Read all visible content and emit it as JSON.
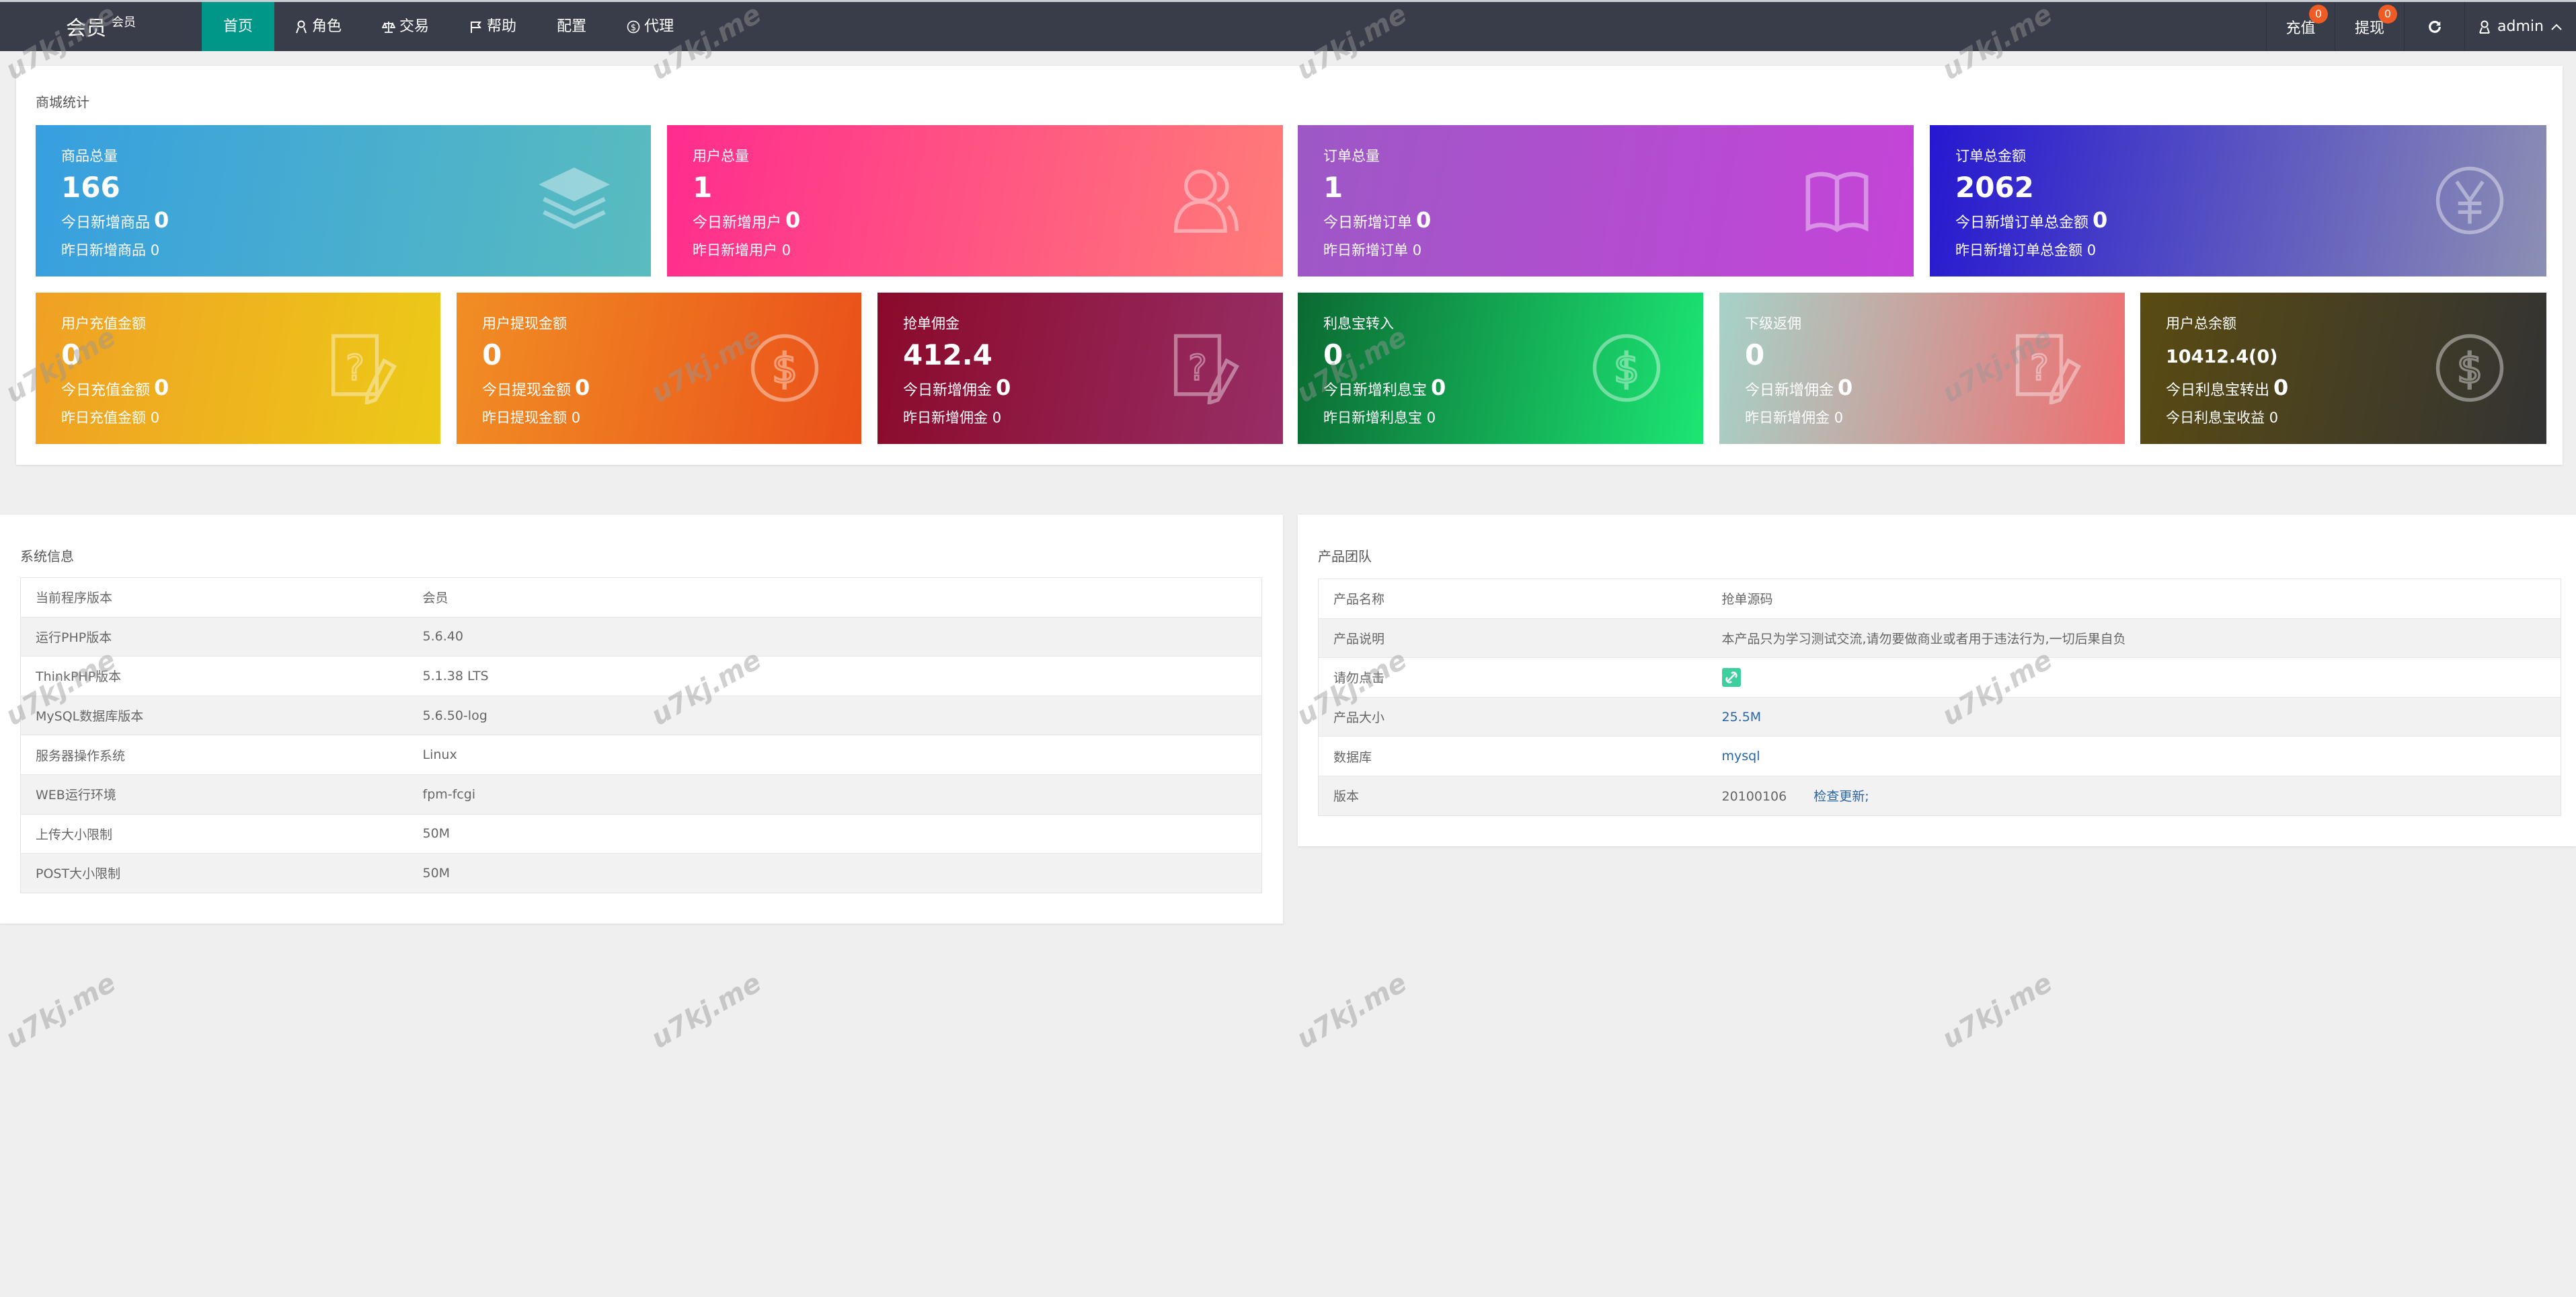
{
  "nav": {
    "logo": "会员",
    "logo_sup": "会员",
    "menu": [
      {
        "label": "首页",
        "icon": "",
        "active": true
      },
      {
        "label": "角色",
        "icon": "user-icon"
      },
      {
        "label": "交易",
        "icon": "scale-icon"
      },
      {
        "label": "帮助",
        "icon": "flag-icon"
      },
      {
        "label": "配置",
        "icon": ""
      },
      {
        "label": "代理",
        "icon": "dollar-circle-icon"
      }
    ],
    "recharge": {
      "label": "充值",
      "badge": "0"
    },
    "withdraw": {
      "label": "提现",
      "badge": "0"
    },
    "refresh_icon": "refresh-icon",
    "user": "admin"
  },
  "stats": {
    "title": "商城统计",
    "cards": [
      {
        "title": "商品总量",
        "value": "166",
        "l1": "今日新增商品",
        "v1": "0",
        "l2": "昨日新增商品",
        "v2": "0",
        "icon": "layers",
        "c1": "#379fdf",
        "c2": "#59bcbf"
      },
      {
        "title": "用户总量",
        "value": "1",
        "l1": "今日新增用户",
        "v1": "0",
        "l2": "昨日新增用户",
        "v2": "0",
        "icon": "user",
        "c1": "#ff2c8e",
        "c2": "#ff7c78"
      },
      {
        "title": "订单总量",
        "value": "1",
        "l1": "今日新增订单",
        "v1": "0",
        "l2": "昨日新增订单",
        "v2": "0",
        "icon": "book",
        "c1": "#9d58c6",
        "c2": "#c544d8"
      },
      {
        "title": "订单总金额",
        "value": "2062",
        "l1": "今日新增订单总金额",
        "v1": "0",
        "l2": "昨日新增订单总金额",
        "v2": "0",
        "icon": "yen",
        "c1": "#2618d0",
        "c2": "#8c8fb3"
      },
      {
        "title": "用户充值金额",
        "value": "0",
        "l1": "今日充值金额",
        "v1": "0",
        "l2": "昨日充值金额",
        "v2": "0",
        "icon": "question",
        "c1": "#f0a024",
        "c2": "#ecca18"
      },
      {
        "title": "用户提现金额",
        "value": "0",
        "l1": "今日提现金额",
        "v1": "0",
        "l2": "昨日提现金额",
        "v2": "0",
        "icon": "dollar",
        "c1": "#f18e24",
        "c2": "#ea501a"
      },
      {
        "title": "抢单佣金",
        "value": "412.4",
        "l1": "今日新增佣金",
        "v1": "0",
        "l2": "昨日新增佣金",
        "v2": "0",
        "icon": "question",
        "c1": "#8a0a2a",
        "c2": "#972e66"
      },
      {
        "title": "利息宝转入",
        "value": "0",
        "l1": "今日新增利息宝",
        "v1": "0",
        "l2": "昨日新增利息宝",
        "v2": "0",
        "icon": "dollar",
        "c1": "#0b6a32",
        "c2": "#1ce674"
      },
      {
        "title": "下级返佣",
        "value": "0",
        "l1": "今日新增佣金",
        "v1": "0",
        "l2": "昨日新增佣金",
        "v2": "0",
        "icon": "question",
        "c1": "#a6d2c8",
        "c2": "#ef6e70"
      },
      {
        "title": "用户总余额",
        "value": "10412.4(0)",
        "l1": "今日利息宝转出",
        "v1": "0",
        "l2": "今日利息宝收益",
        "v2": "0",
        "icon": "dollar",
        "c1": "#5a4b12",
        "c2": "#333333"
      }
    ]
  },
  "sysinfo": {
    "title": "系统信息",
    "rows": [
      [
        "当前程序版本",
        "会员"
      ],
      [
        "运行PHP版本",
        "5.6.40"
      ],
      [
        "ThinkPHP版本",
        "5.1.38 LTS"
      ],
      [
        "MySQL数据库版本",
        "5.6.50-log"
      ],
      [
        "服务器操作系统",
        "Linux"
      ],
      [
        "WEB运行环境",
        "fpm-fcgi"
      ],
      [
        "上传大小限制",
        "50M"
      ],
      [
        "POST大小限制",
        "50M"
      ]
    ]
  },
  "product": {
    "title": "产品团队",
    "rows": [
      {
        "k": "产品名称",
        "v": "抢单源码"
      },
      {
        "k": "产品说明",
        "v": "本产品只为学习测试交流,请勿要做商业或者用于违法行为,一切后果自负"
      },
      {
        "k": "请勿点击",
        "icon": "link-icon"
      },
      {
        "k": "产品大小",
        "v": "25.5M",
        "link": true
      },
      {
        "k": "数据库",
        "v": "mysql",
        "link": true
      },
      {
        "k": "版本",
        "v": "20100106",
        "extra": "检查更新;"
      }
    ]
  },
  "watermark": "u7kj.me"
}
